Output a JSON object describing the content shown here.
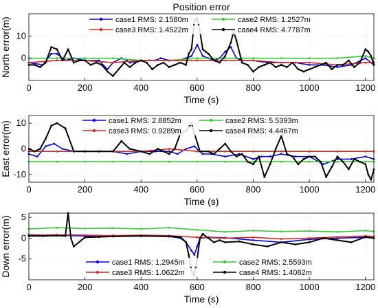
{
  "chart_data": [
    {
      "type": "line",
      "title": "Position error",
      "xlabel": "Time (s)",
      "ylabel": "North error(m)",
      "xlim": [
        0,
        1230
      ],
      "ylim": [
        -10,
        20
      ],
      "xticks": [
        0,
        200,
        400,
        600,
        800,
        1000,
        1200
      ],
      "yticks": [
        0,
        10
      ],
      "grid": true,
      "legend_position": "top",
      "series": [
        {
          "name": "case1",
          "rms_label": "case1 RMS: 2.1580m",
          "color": "#0000e6",
          "x": [
            0,
            50,
            80,
            100,
            130,
            160,
            200,
            250,
            280,
            300,
            330,
            350,
            360,
            400,
            430,
            450,
            470,
            500,
            530,
            560,
            580,
            600,
            620,
            640,
            660,
            680,
            700,
            720,
            740,
            760,
            800,
            850,
            900,
            950,
            1000,
            1050,
            1100,
            1150,
            1200,
            1230
          ],
          "y": [
            -2,
            -3,
            2,
            2,
            -1,
            0,
            -1,
            -1,
            -5,
            -2,
            0,
            -1,
            -2,
            -1,
            -1,
            -1,
            0,
            -1,
            -1,
            0,
            1,
            6,
            1,
            0,
            -1,
            0,
            3,
            5,
            0,
            -1,
            -1,
            -2,
            -2,
            -2,
            -3,
            -3,
            -4,
            -3,
            0,
            -3
          ]
        },
        {
          "name": "case2",
          "rms_label": "case2 RMS: 1.2527m",
          "color": "#33cc33",
          "x": [
            0,
            100,
            200,
            300,
            400,
            500,
            600,
            700,
            800,
            900,
            1000,
            1100,
            1200,
            1230
          ],
          "y": [
            0,
            0,
            0,
            0,
            -1,
            -1,
            0,
            0,
            0,
            0,
            0,
            0,
            1,
            0
          ]
        },
        {
          "name": "case3",
          "rms_label": "case3 RMS: 1.4522m",
          "color": "#d42a1f",
          "x": [
            0,
            100,
            200,
            300,
            400,
            500,
            600,
            700,
            800,
            900,
            1000,
            1100,
            1200,
            1230
          ],
          "y": [
            -2,
            -1,
            -1,
            -2,
            -1,
            -1,
            -1,
            -1,
            -1,
            -2,
            -2,
            -3,
            -2,
            -2
          ]
        },
        {
          "name": "case4",
          "rms_label": "case4 RMS: 4.7787m",
          "color": "#000000",
          "x": [
            0,
            20,
            40,
            60,
            80,
            100,
            120,
            140,
            160,
            180,
            200,
            220,
            240,
            260,
            280,
            300,
            320,
            340,
            360,
            380,
            400,
            420,
            440,
            460,
            480,
            500,
            520,
            540,
            560,
            570,
            580,
            590,
            600,
            610,
            620,
            630,
            640,
            660,
            680,
            700,
            720,
            730,
            740,
            760,
            780,
            800,
            820,
            840,
            860,
            880,
            900,
            920,
            940,
            960,
            980,
            1000,
            1020,
            1040,
            1060,
            1080,
            1100,
            1120,
            1140,
            1160,
            1180,
            1200,
            1210,
            1220,
            1230
          ],
          "y": [
            -3,
            -3,
            -4,
            -2,
            5,
            4,
            -1,
            4,
            -2,
            -1,
            -1,
            -3,
            -2,
            -3,
            -6,
            -8,
            -5,
            -2,
            -4,
            -2,
            -1,
            -2,
            -5,
            -3,
            -2,
            -4,
            -3,
            -2,
            -3,
            2,
            4,
            17,
            18,
            12,
            4,
            3,
            2,
            -1,
            -2,
            1,
            7,
            12,
            8,
            -2,
            -3,
            -6,
            -4,
            -3,
            -2,
            -4,
            -3,
            -4,
            -2,
            -5,
            -6,
            -5,
            -4,
            -3,
            -2,
            -5,
            -3,
            -3,
            -1,
            -4,
            -2,
            4,
            3,
            1,
            -3
          ]
        }
      ]
    },
    {
      "type": "line",
      "xlabel": "Time (s)",
      "ylabel": "East error(m)",
      "xlim": [
        0,
        1230
      ],
      "ylim": [
        -13,
        13
      ],
      "xticks": [
        0,
        200,
        400,
        600,
        800,
        1000,
        1200
      ],
      "yticks": [
        -10,
        0,
        10
      ],
      "grid": true,
      "legend_position": "top",
      "series": [
        {
          "name": "case1",
          "rms_label": "case1 RMS: 2.8852m",
          "color": "#0000e6",
          "x": [
            0,
            30,
            60,
            90,
            120,
            160,
            200,
            250,
            300,
            350,
            400,
            450,
            500,
            530,
            560,
            590,
            620,
            650,
            700,
            750,
            800,
            830,
            860,
            900,
            950,
            1000,
            1050,
            1100,
            1150,
            1200,
            1230
          ],
          "y": [
            -2,
            -3,
            1,
            2,
            0,
            -1,
            -1,
            -1,
            -1,
            -2,
            -1,
            -1,
            -1,
            -2,
            0,
            1,
            -2,
            -2,
            -3,
            -2,
            -4,
            -3,
            -3,
            -2,
            -3,
            -3,
            -6,
            -4,
            -4,
            -3,
            -4
          ]
        },
        {
          "name": "case2",
          "rms_label": "case2 RMS: 5.5393m",
          "color": "#33cc33",
          "x": [
            0,
            100,
            200,
            300,
            400,
            500,
            600,
            700,
            800,
            900,
            1000,
            1100,
            1200,
            1230
          ],
          "y": [
            -5,
            -5,
            -5,
            -5,
            -5,
            -5,
            -5,
            -5,
            -5,
            -5,
            -5,
            -5,
            -5,
            -5
          ]
        },
        {
          "name": "case3",
          "rms_label": "case3 RMS: 0.9289m",
          "color": "#d42a1f",
          "x": [
            0,
            100,
            200,
            300,
            400,
            500,
            600,
            700,
            800,
            900,
            1000,
            1100,
            1200,
            1230
          ],
          "y": [
            -1,
            -1,
            -1,
            -1,
            -1,
            0,
            -1,
            -1,
            -1,
            -1,
            -1,
            -1,
            -1,
            -1
          ]
        },
        {
          "name": "case4",
          "rms_label": "case4 RMS: 4.4467m",
          "color": "#000000",
          "x": [
            0,
            20,
            40,
            60,
            80,
            100,
            130,
            160,
            200,
            250,
            300,
            330,
            360,
            400,
            430,
            460,
            480,
            500,
            520,
            540,
            560,
            580,
            590,
            610,
            640,
            660,
            680,
            700,
            720,
            740,
            760,
            780,
            800,
            820,
            840,
            860,
            880,
            900,
            920,
            940,
            960,
            980,
            1000,
            1020,
            1040,
            1060,
            1080,
            1100,
            1120,
            1140,
            1160,
            1180,
            1200,
            1210,
            1220,
            1230
          ],
          "y": [
            0,
            -1,
            0,
            4,
            9,
            10,
            8,
            -1,
            -1,
            -1,
            -1,
            3,
            0,
            -1,
            -2,
            0,
            -1,
            -2,
            0,
            6,
            7,
            10,
            6,
            -1,
            -1,
            -2,
            0,
            2,
            -1,
            -3,
            -2,
            -5,
            -6,
            -3,
            -11,
            -6,
            0,
            5,
            -2,
            -3,
            -6,
            -4,
            -3,
            -3,
            -5,
            -11,
            -7,
            -3,
            -5,
            -8,
            -4,
            -5,
            -6,
            -10,
            -12,
            -8
          ]
        }
      ]
    },
    {
      "type": "line",
      "xlabel": "Time (s)",
      "ylabel": "Down error(m)",
      "xlim": [
        0,
        1230
      ],
      "ylim": [
        -10,
        6
      ],
      "xticks": [
        0,
        200,
        400,
        600,
        800,
        1000,
        1200
      ],
      "yticks": [
        -5,
        0,
        5
      ],
      "grid": true,
      "legend_position": "bottom",
      "series": [
        {
          "name": "case1",
          "rms_label": "case1 RMS: 1.2945m",
          "color": "#0000e6",
          "x": [
            0,
            100,
            200,
            300,
            400,
            500,
            540,
            560,
            580,
            590,
            600,
            610,
            640,
            700,
            800,
            900,
            1000,
            1100,
            1200,
            1230
          ],
          "y": [
            0.8,
            0.7,
            0.5,
            0.6,
            0.5,
            0.4,
            0,
            -1,
            -3,
            -4,
            -2,
            0,
            0.2,
            0.1,
            -0.5,
            -1,
            -0.3,
            0,
            0.2,
            0
          ]
        },
        {
          "name": "case2",
          "rms_label": "case2 RMS: 2.5593m",
          "color": "#33cc33",
          "x": [
            0,
            100,
            200,
            300,
            400,
            500,
            600,
            700,
            800,
            900,
            1000,
            1100,
            1200,
            1230
          ],
          "y": [
            2.2,
            2.5,
            2.3,
            2.4,
            2.2,
            2.5,
            2,
            1.5,
            1.8,
            1.6,
            1.7,
            1.5,
            1.8,
            1.6
          ]
        },
        {
          "name": "case3",
          "rms_label": "case3 RMS: 1.0622m",
          "color": "#d42a1f",
          "x": [
            0,
            100,
            200,
            300,
            400,
            500,
            600,
            700,
            800,
            900,
            1000,
            1100,
            1200,
            1230
          ],
          "y": [
            0.7,
            0.8,
            0.7,
            0.6,
            0.7,
            0.6,
            0.2,
            0,
            0.2,
            -0.2,
            0,
            0.3,
            0.5,
            0.4
          ]
        },
        {
          "name": "case4",
          "rms_label": "case4 RMS: 1.4082m",
          "color": "#000000",
          "x": [
            0,
            50,
            100,
            130,
            140,
            150,
            160,
            200,
            250,
            300,
            400,
            500,
            540,
            560,
            570,
            580,
            590,
            600,
            610,
            620,
            640,
            660,
            680,
            700,
            750,
            800,
            850,
            900,
            950,
            1000,
            1050,
            1100,
            1150,
            1200,
            1230
          ],
          "y": [
            0.5,
            0.5,
            0.6,
            0.5,
            6,
            0,
            -2,
            0.2,
            0.3,
            0.4,
            0.5,
            0.4,
            0.3,
            -1,
            -4,
            -8,
            -9,
            -5,
            0,
            1,
            0,
            -1,
            -0.5,
            -1,
            -0.8,
            -1.5,
            -2,
            -1,
            -1.5,
            -1,
            0,
            -0.5,
            -1,
            0.3,
            0
          ]
        }
      ]
    }
  ]
}
